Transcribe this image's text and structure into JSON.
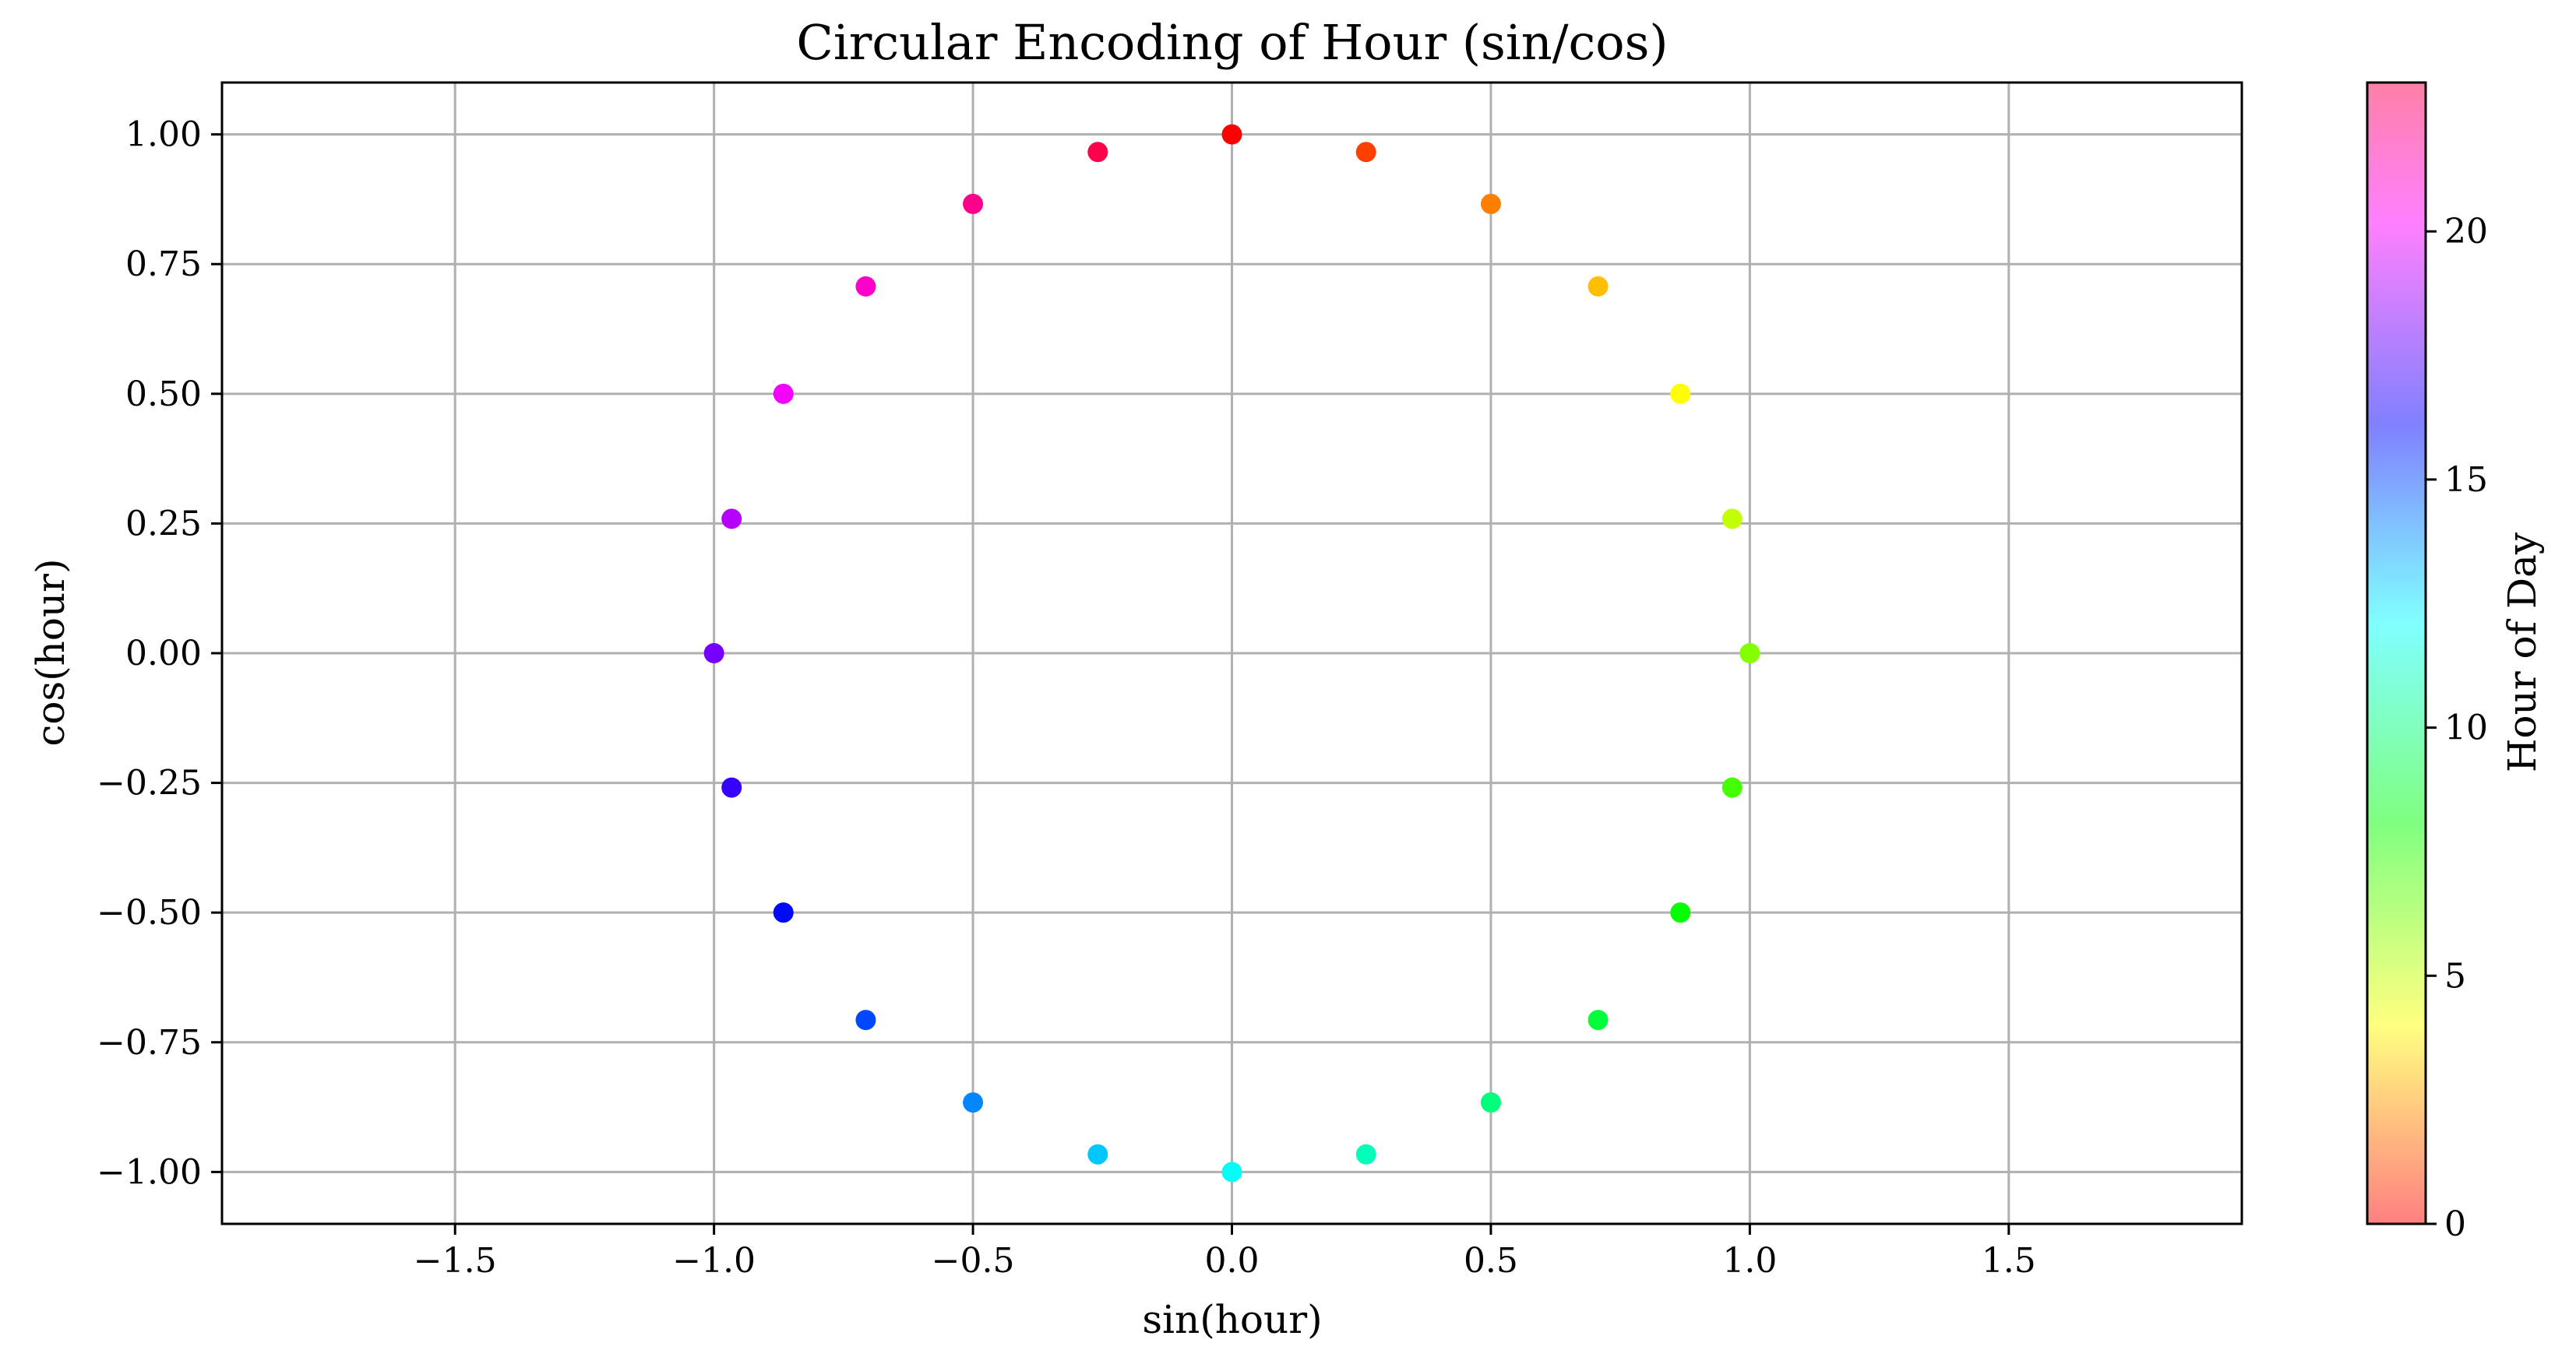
{
  "chart_data": {
    "type": "scatter",
    "title": "Circular Encoding of Hour (sin/cos)",
    "xlabel": "sin(hour)",
    "ylabel": "cos(hour)",
    "xlim": [
      -1.95,
      1.95
    ],
    "ylim": [
      -1.1,
      1.1
    ],
    "grid": true,
    "x_ticks": [
      -1.5,
      -1.0,
      -0.5,
      0.0,
      0.5,
      1.0,
      1.5
    ],
    "x_tick_labels": [
      "−1.5",
      "−1.0",
      "−0.5",
      "0.0",
      "0.5",
      "1.0",
      "1.5"
    ],
    "y_ticks": [
      1.0,
      0.75,
      0.5,
      0.25,
      0.0,
      -0.25,
      -0.5,
      -0.75,
      -1.0
    ],
    "y_tick_labels": [
      "1.00",
      "0.75",
      "0.50",
      "0.25",
      "0.00",
      "−0.25",
      "−0.50",
      "−0.75",
      "−1.00"
    ],
    "colorbar": {
      "label": "Hour of Day",
      "range": [
        0,
        23
      ],
      "ticks": [
        0,
        5,
        10,
        15,
        20
      ],
      "tick_labels": [
        "0",
        "5",
        "10",
        "15",
        "20"
      ],
      "colormap": "hsv",
      "alpha": 0.5
    },
    "points": [
      {
        "hour": 0,
        "x": 0.0,
        "y": 1.0
      },
      {
        "hour": 1,
        "x": 0.259,
        "y": 0.966
      },
      {
        "hour": 2,
        "x": 0.5,
        "y": 0.866
      },
      {
        "hour": 3,
        "x": 0.707,
        "y": 0.707
      },
      {
        "hour": 4,
        "x": 0.866,
        "y": 0.5
      },
      {
        "hour": 5,
        "x": 0.966,
        "y": 0.259
      },
      {
        "hour": 6,
        "x": 1.0,
        "y": 0.0
      },
      {
        "hour": 7,
        "x": 0.966,
        "y": -0.259
      },
      {
        "hour": 8,
        "x": 0.866,
        "y": -0.5
      },
      {
        "hour": 9,
        "x": 0.707,
        "y": -0.707
      },
      {
        "hour": 10,
        "x": 0.5,
        "y": -0.866
      },
      {
        "hour": 11,
        "x": 0.259,
        "y": -0.966
      },
      {
        "hour": 12,
        "x": 0.0,
        "y": -1.0
      },
      {
        "hour": 13,
        "x": -0.259,
        "y": -0.966
      },
      {
        "hour": 14,
        "x": -0.5,
        "y": -0.866
      },
      {
        "hour": 15,
        "x": -0.707,
        "y": -0.707
      },
      {
        "hour": 16,
        "x": -0.866,
        "y": -0.5
      },
      {
        "hour": 17,
        "x": -0.966,
        "y": -0.259
      },
      {
        "hour": 18,
        "x": -1.0,
        "y": 0.0
      },
      {
        "hour": 19,
        "x": -0.966,
        "y": 0.259
      },
      {
        "hour": 20,
        "x": -0.866,
        "y": 0.5
      },
      {
        "hour": 21,
        "x": -0.707,
        "y": 0.707
      },
      {
        "hour": 22,
        "x": -0.5,
        "y": 0.866
      },
      {
        "hour": 23,
        "x": -0.259,
        "y": 0.966
      }
    ]
  }
}
